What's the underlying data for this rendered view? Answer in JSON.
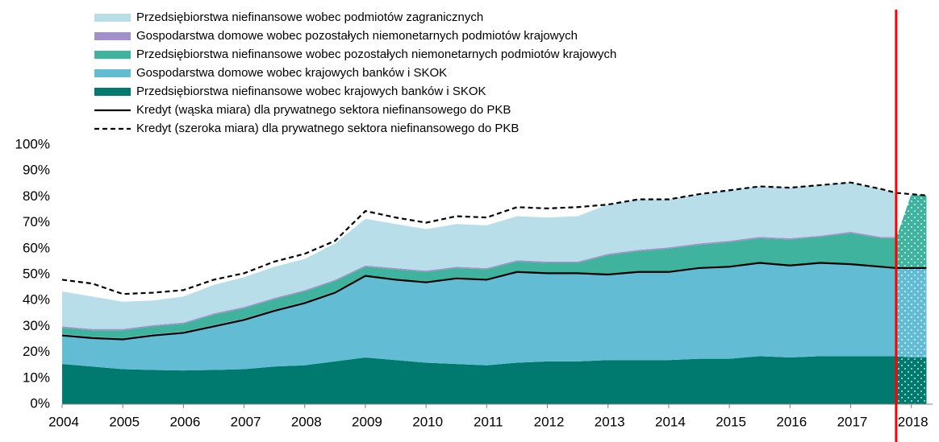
{
  "chart_data": {
    "type": "stacked-area",
    "x": [
      2004,
      2004.5,
      2005,
      2005.5,
      2006,
      2006.5,
      2007,
      2007.5,
      2008,
      2008.5,
      2009,
      2009.5,
      2010,
      2010.5,
      2011,
      2011.5,
      2012,
      2012.5,
      2013,
      2013.5,
      2014,
      2014.5,
      2015,
      2015.5,
      2016,
      2016.5,
      2017,
      2017.5,
      2017.75,
      2018,
      2018.25
    ],
    "series": [
      {
        "name": "Przedsiębiorstwa niefinansowe wobec krajowych banków i SKOK",
        "color": "#007a6e",
        "values": [
          15.5,
          14.5,
          13.5,
          13.2,
          13,
          13.2,
          13.5,
          14.5,
          15,
          16.5,
          18,
          17,
          16,
          15.5,
          15,
          16,
          16.5,
          16.5,
          17,
          17,
          17,
          17.5,
          17.5,
          18.5,
          18,
          18.5,
          18.5,
          18.5,
          18.5,
          18,
          18
        ]
      },
      {
        "name": "Gospodarstwa domowe wobec krajowych banków i SKOK",
        "color": "#62bcd3",
        "values": [
          11.5,
          11.5,
          12,
          13.8,
          15,
          17.3,
          19.5,
          22,
          24.5,
          27,
          31.5,
          31,
          31,
          33,
          33,
          35,
          34,
          34,
          33,
          34,
          34,
          35,
          35.5,
          36,
          35.5,
          36,
          35.5,
          34.5,
          34,
          34.5,
          34.5
        ]
      },
      {
        "name": "Przedsiębiorstwa niefinansowe wobec pozostałych niemonetarnych podmiotów krajowych",
        "color": "#40b39f",
        "values": [
          2.5,
          2.5,
          3,
          3,
          3,
          4,
          4,
          4,
          4,
          4,
          3.5,
          4,
          4,
          4,
          4,
          4,
          4,
          4,
          7.5,
          8,
          9,
          9,
          9.5,
          9.5,
          10,
          10,
          12,
          11,
          11.5,
          28.5,
          28
        ]
      },
      {
        "name": "Gospodarstwa domowe wobec pozostałych niemonetarnych podmiotów krajowych",
        "color": "#a291c8",
        "values": [
          0.5,
          0.5,
          0.5,
          0.5,
          0.5,
          0.5,
          0.5,
          0.5,
          0.5,
          0.5,
          0.5,
          0.5,
          0.5,
          0.5,
          0.5,
          0.5,
          0.5,
          0.5,
          0.5,
          0.5,
          0.5,
          0.5,
          0.5,
          0.5,
          0.5,
          0.5,
          0.5,
          0.5,
          0.5,
          null,
          null
        ]
      },
      {
        "name": "Przedsiębiorstwa niefinansowe wobec podmiotów zagranicznych",
        "color": "#b8dfe9",
        "values": [
          13.5,
          12.5,
          10.5,
          9.5,
          10,
          11,
          11.5,
          12,
          12,
          14,
          18,
          17,
          16,
          16.5,
          16.5,
          17,
          17,
          17.5,
          19,
          19.5,
          18.5,
          19,
          19.5,
          19.5,
          19.5,
          19.5,
          19,
          18.5,
          17,
          null,
          null
        ]
      }
    ],
    "lines": [
      {
        "name": "Kredyt (wąska miara) dla prywatnego sektora niefinansowego do PKB",
        "color": "#000000",
        "dashed": false,
        "values": [
          26.5,
          25.5,
          25,
          26.5,
          27.5,
          30,
          32.5,
          36,
          39,
          43,
          49.5,
          48,
          47,
          48.5,
          48,
          51,
          50.5,
          50.5,
          50,
          51,
          51,
          52.5,
          53,
          54.5,
          53.5,
          54.5,
          54,
          53,
          52.5,
          52.5,
          52.5
        ]
      },
      {
        "name": "Kredyt (szeroka miara) dla prywatnego sektora niefinansowego do PKB",
        "color": "#000000",
        "dashed": true,
        "values": [
          48,
          46.5,
          42.5,
          43,
          44,
          48,
          50.5,
          55,
          58,
          63,
          74.5,
          72,
          70,
          72.5,
          72,
          76,
          75.5,
          76,
          77,
          79,
          79,
          81,
          82.5,
          84,
          83.5,
          84.5,
          85.5,
          83,
          81.5,
          81,
          80.5
        ]
      }
    ],
    "xlim": [
      2004,
      2018.35
    ],
    "xticks": [
      2004,
      2005,
      2006,
      2007,
      2008,
      2009,
      2010,
      2011,
      2012,
      2013,
      2014,
      2015,
      2016,
      2017,
      2018
    ],
    "ylim": [
      0,
      100
    ],
    "yticks": [
      {
        "value": 0,
        "label": "0%"
      },
      {
        "value": 10,
        "label": "10%"
      },
      {
        "value": 20,
        "label": "20%"
      },
      {
        "value": 30,
        "label": "30%"
      },
      {
        "value": 40,
        "label": "40%"
      },
      {
        "value": 50,
        "label": "50%"
      },
      {
        "value": 60,
        "label": "60%"
      },
      {
        "value": 70,
        "label": "70%"
      },
      {
        "value": 80,
        "label": "80%"
      },
      {
        "value": 90,
        "label": "90%"
      },
      {
        "value": 100,
        "label": "100%"
      }
    ],
    "vline": {
      "value": 2017.75,
      "color": "#ff0000"
    },
    "grid": false
  }
}
